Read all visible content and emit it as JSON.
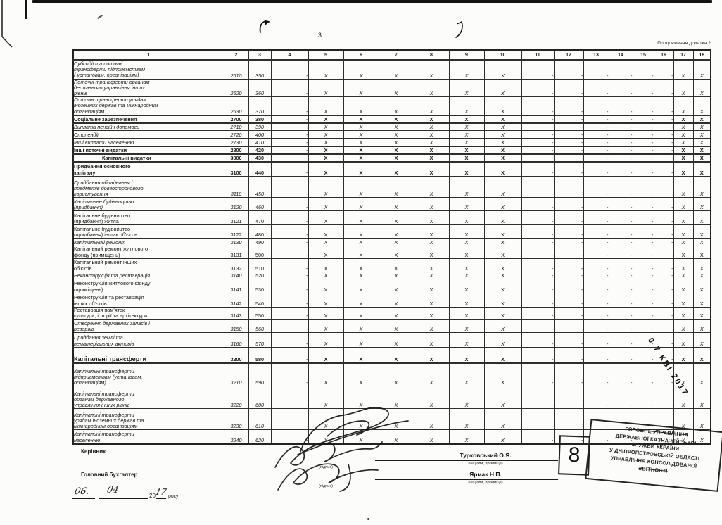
{
  "page": {
    "number": "3",
    "continuation_note": "Продовження додатка 2"
  },
  "table": {
    "column_numbers": [
      "1",
      "2",
      "3",
      "4",
      "5",
      "6",
      "7",
      "8",
      "9",
      "10",
      "11",
      "12",
      "13",
      "14",
      "15",
      "16",
      "17",
      "18"
    ],
    "rows": [
      {
        "label": "Субсидії та поточні\nтрансферти підприємствам\n( установам, організаціям)",
        "code": "2610",
        "line_code": "350",
        "style": "italic",
        "cells": [
          "-",
          "X",
          "X",
          "X",
          "X",
          "X",
          "X",
          "-",
          "-",
          "-",
          "-",
          "-",
          "-",
          "X",
          "X"
        ]
      },
      {
        "label": "Поточні трансферти органам\nдержавного управління інших\nрівнів",
        "code": "2620",
        "line_code": "360",
        "style": "italic",
        "cells": [
          "-",
          "X",
          "X",
          "X",
          "X",
          "X",
          "X",
          "-",
          "-",
          "-",
          "-",
          "-",
          "-",
          "X",
          "X"
        ]
      },
      {
        "label": "Поточні трансферти урядам\nіноземних держав та міжнародним\nорганізаціям",
        "code": "2630",
        "line_code": "370",
        "style": "italic",
        "cells": [
          "-",
          "X",
          "X",
          "X",
          "X",
          "X",
          "X",
          "-",
          "-",
          "-",
          "-",
          "-",
          "-",
          "X",
          "X"
        ]
      },
      {
        "label": "Соціальне забезпечення",
        "code": "2700",
        "line_code": "380",
        "style": "bold",
        "cells": [
          "-",
          "X",
          "X",
          "X",
          "X",
          "X",
          "X",
          "-",
          "-",
          "-",
          "-",
          "-",
          "-",
          "X",
          "X"
        ]
      },
      {
        "label": "Виплата пенсій і допомоги",
        "code": "2710",
        "line_code": "390",
        "style": "italic",
        "cells": [
          "-",
          "X",
          "X",
          "X",
          "X",
          "X",
          "X",
          "-",
          "-",
          "-",
          "-",
          "-",
          "-",
          "X",
          "X"
        ]
      },
      {
        "label": "Стипендії",
        "code": "2720",
        "line_code": "400",
        "style": "italic",
        "cells": [
          "-",
          "X",
          "X",
          "X",
          "X",
          "X",
          "X",
          "-",
          "-",
          "-",
          "-",
          "-",
          "-",
          "X",
          "X"
        ]
      },
      {
        "label": "Інші виплати населенню",
        "code": "2730",
        "line_code": "410",
        "style": "italic",
        "cells": [
          "-",
          "X",
          "X",
          "X",
          "X",
          "X",
          "X",
          "-",
          "-",
          "-",
          "-",
          "-",
          "-",
          "X",
          "X"
        ]
      },
      {
        "label": "Інші поточні видатки",
        "code": "2800",
        "line_code": "420",
        "style": "bold",
        "cells": [
          "-",
          "X",
          "X",
          "X",
          "X",
          "X",
          "X",
          "-",
          "-",
          "-",
          "-",
          "-",
          "-",
          "X",
          "X"
        ]
      },
      {
        "label": "Капітальні видатки",
        "code": "3000",
        "line_code": "430",
        "style": "bold",
        "indent": true,
        "cells": [
          "-",
          "X",
          "X",
          "X",
          "X",
          "X",
          "X",
          "-",
          "-",
          "-",
          "-",
          "-",
          "-",
          "X",
          "X"
        ]
      },
      {
        "label": "Придбання основного\nкапіталу",
        "code": "3100",
        "line_code": "440",
        "style": "bold",
        "cells": [
          "-",
          "X",
          "X",
          "X",
          "X",
          "X",
          "X",
          "-",
          "-",
          "-",
          "-",
          "-",
          "-",
          "X",
          "X"
        ]
      },
      {
        "label": "Придбання обладнання і\nпредметів довгострокового\nкористування",
        "code": "3110",
        "line_code": "450",
        "style": "italic",
        "cells": [
          "-",
          "X",
          "X",
          "X",
          "X",
          "X",
          "X",
          "-",
          "-",
          "-",
          "-",
          "-",
          "-",
          "X",
          "X"
        ]
      },
      {
        "label": "Капітальне будівництво\n(придбання)",
        "code": "3120",
        "line_code": "460",
        "style": "italic",
        "cells": [
          "-",
          "X",
          "X",
          "X",
          "X",
          "X",
          "X",
          "-",
          "-",
          "-",
          "-",
          "-",
          "-",
          "X",
          "X"
        ]
      },
      {
        "label": "Капітальне будівництво\n(придбання) житла",
        "code": "3121",
        "line_code": "470",
        "style": "regular",
        "cells": [
          "-",
          "X",
          "X",
          "X",
          "X",
          "X",
          "X",
          "-",
          "-",
          "-",
          "-",
          "-",
          "-",
          "X",
          "X"
        ]
      },
      {
        "label": "Капітальне будівництво\n(придбання) інших об'єктів",
        "code": "3122",
        "line_code": "480",
        "style": "regular",
        "cells": [
          "-",
          "X",
          "X",
          "X",
          "X",
          "X",
          "X",
          "-",
          "-",
          "-",
          "-",
          "-",
          "-",
          "X",
          "X"
        ]
      },
      {
        "label": "Капітальний ремонт",
        "code": "3130",
        "line_code": "490",
        "style": "italic",
        "cells": [
          "-",
          "X",
          "X",
          "X",
          "X",
          "X",
          "X",
          "-",
          "-",
          "-",
          "-",
          "-",
          "-",
          "X",
          "X"
        ]
      },
      {
        "label": "Капітальний ремонт житлового\nфонду (приміщень)",
        "code": "3131",
        "line_code": "500",
        "style": "regular",
        "cells": [
          "-",
          "X",
          "X",
          "X",
          "X",
          "X",
          "X",
          "-",
          "-",
          "-",
          "-",
          "-",
          "-",
          "X",
          "X"
        ]
      },
      {
        "label": "Капітальний ремонт інших\nоб'єктів",
        "code": "3132",
        "line_code": "510",
        "style": "regular",
        "cells": [
          "-",
          "X",
          "X",
          "X",
          "X",
          "X",
          "X",
          "-",
          "-",
          "-",
          "-",
          "-",
          "-",
          "X",
          "X"
        ]
      },
      {
        "label": "Реконструкція та реставрація",
        "code": "3140",
        "line_code": "520",
        "style": "italic",
        "cells": [
          "-",
          "X",
          "X",
          "X",
          "X",
          "X",
          "X",
          "-",
          "-",
          "-",
          "-",
          "-",
          "-",
          "X",
          "X"
        ]
      },
      {
        "label": "Реконструкція житлового фонду\n(приміщень)",
        "code": "3141",
        "line_code": "530",
        "style": "regular",
        "cells": [
          "-",
          "X",
          "X",
          "X",
          "X",
          "X",
          "X",
          "-",
          "-",
          "-",
          "-",
          "-",
          "-",
          "X",
          "X"
        ]
      },
      {
        "label": "Реконструкція та реставрація\nінших об'єктів",
        "code": "3142",
        "line_code": "540",
        "style": "regular",
        "cells": [
          "-",
          "X",
          "X",
          "X",
          "X",
          "X",
          "X",
          "-",
          "-",
          "-",
          "-",
          "-",
          "-",
          "X",
          "X"
        ]
      },
      {
        "label": "Реставрація пам'яток\nкультури, історії та архітектури",
        "code": "3143",
        "line_code": "550",
        "style": "regular",
        "cells": [
          "-",
          "X",
          "X",
          "X",
          "X",
          "X",
          "X",
          "-",
          "-",
          "-",
          "-",
          "-",
          "-",
          "X",
          "X"
        ]
      },
      {
        "label": "Створення державних запасів і\nрезервів",
        "code": "3150",
        "line_code": "560",
        "style": "italic",
        "cells": [
          "-",
          "X",
          "X",
          "X",
          "X",
          "X",
          "X",
          "-",
          "-",
          "-",
          "-",
          "-",
          "-",
          "X",
          "X"
        ]
      },
      {
        "label": "Придбання землі та\nнематеріальних активів",
        "code": "3160",
        "line_code": "570",
        "style": "italic",
        "cells": [
          "-",
          "X",
          "X",
          "X",
          "X",
          "X",
          "X",
          "-",
          "-",
          "-",
          "-",
          "-",
          "-",
          "X",
          "X"
        ]
      },
      {
        "label": "Капітальні трансферти",
        "code": "3200",
        "line_code": "580",
        "style": "bold",
        "big": true,
        "cells": [
          "-",
          "X",
          "X",
          "X",
          "X",
          "X",
          "X",
          "-",
          "-",
          "-",
          "-",
          "-",
          "-",
          "X",
          "X"
        ]
      },
      {
        "label": "Капітальні трансферти\nпідприємствам (установам,\nорганізаціям)",
        "code": "3210",
        "line_code": "590",
        "style": "italic",
        "cells": [
          "-",
          "X",
          "X",
          "X",
          "X",
          "X",
          "X",
          "-",
          "-",
          "-",
          "-",
          "-",
          "-",
          "X",
          "X"
        ]
      },
      {
        "label": "Капітальні трансферти\nорганам державного\nуправління інших рівнів",
        "code": "3220",
        "line_code": "600",
        "style": "italic",
        "cells": [
          "-",
          "X",
          "X",
          "X",
          "X",
          "X",
          "X",
          "-",
          "-",
          "-",
          "-",
          "-",
          "-",
          "X",
          "X"
        ]
      },
      {
        "label": "Капітальні трансферти\nурядам іноземних держав та\nміжнародним організаціям",
        "code": "3230",
        "line_code": "610",
        "style": "italic",
        "cells": [
          "-",
          "X",
          "X",
          "X",
          "X",
          "X",
          "X",
          "-",
          "-",
          "-",
          "-",
          "-",
          "-",
          "X",
          "X"
        ]
      },
      {
        "label": "Капітальні трансферти\nнаселенню",
        "code": "3240",
        "line_code": "620",
        "style": "italic",
        "cells": [
          "-",
          "X",
          "X",
          "X",
          "X",
          "X",
          "X",
          "-",
          "-",
          "-",
          "-",
          "-",
          "-",
          "X",
          "X"
        ]
      }
    ]
  },
  "signature_block": {
    "director_label": "Керівник",
    "accountant_label": "Головний бухгалтер",
    "signature_caption": "(підпис)",
    "name_caption": "(ініціали, прізвище)",
    "director_name": "Турковський О.Я.",
    "accountant_name": "Ярмак Н.П."
  },
  "date_line": {
    "day": "06.",
    "month": "04",
    "century": "20",
    "year": "17",
    "suffix": "року"
  },
  "stamps": {
    "number_stamp": "8",
    "office_lines": [
      "ГОЛОВНЕ УПРАВЛІННЯ",
      "ДЕРЖАВНОЇ КАЗНАЧЕЙСЬКОЇ",
      "СЛУЖБИ УКРАЇНИ",
      "У ДНІПРОПЕТРОВСЬКІЙ ОБЛАСТІ",
      "УПРАВЛІННЯ КОНСОЛІДОВАНОЇ",
      "ЗВІТНОСТІ"
    ],
    "date_stamp": "0 7 КВІ 2017"
  }
}
